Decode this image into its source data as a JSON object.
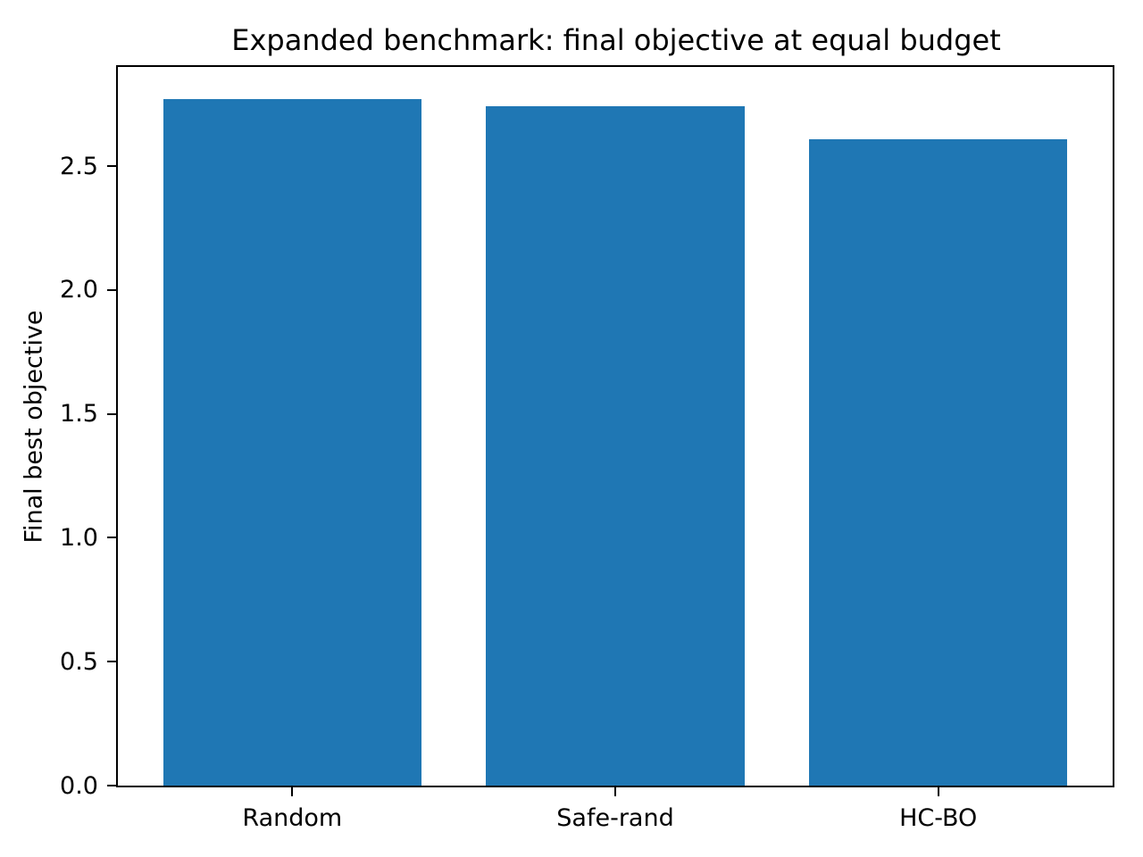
{
  "chart_data": {
    "type": "bar",
    "title": "Expanded benchmark: final objective at equal budget",
    "xlabel": "",
    "ylabel": "Final best objective",
    "categories": [
      "Random",
      "Safe-rand",
      "HC-BO"
    ],
    "values": [
      2.77,
      2.74,
      2.61
    ],
    "ylim": [
      0,
      2.9
    ],
    "yticks": [
      0.0,
      0.5,
      1.0,
      1.5,
      2.0,
      2.5
    ],
    "ytick_labels": [
      "0.0",
      "0.5",
      "1.0",
      "1.5",
      "2.0",
      "2.5"
    ],
    "bar_color": "#1f77b4",
    "background_color": "#ffffff",
    "axis_color": "#000000",
    "grid": false,
    "legend": null
  }
}
